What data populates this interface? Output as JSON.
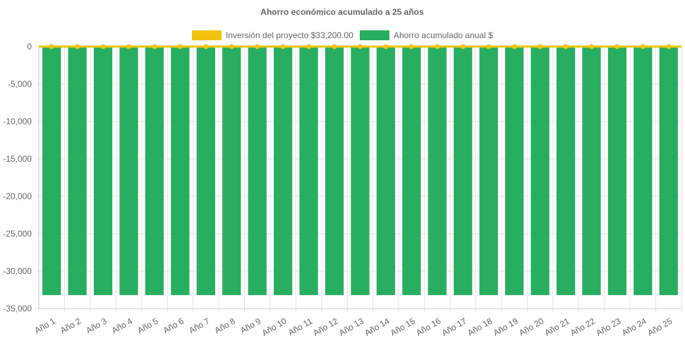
{
  "chart_data": {
    "type": "bar",
    "title": "Ahorro económico acumulado a 25 años",
    "legend_position": "top",
    "grid": true,
    "ylim": [
      -35000,
      0
    ],
    "yticks": [
      0,
      -5000,
      -10000,
      -15000,
      -20000,
      -25000,
      -30000,
      -35000
    ],
    "ytick_labels": [
      "0",
      "-5,000",
      "-10,000",
      "-15,000",
      "-20,000",
      "-25,000",
      "-30,000",
      "-35,000"
    ],
    "categories": [
      "Año 1",
      "Año 2",
      "Año 3",
      "Año 4",
      "Año 5",
      "Año 6",
      "Año 7",
      "Año 8",
      "Año 9",
      "Año 10",
      "Año 11",
      "Año 12",
      "Año 13",
      "Año 14",
      "Año 15",
      "Año 16",
      "Año 17",
      "Año 18",
      "Año 19",
      "Año 20",
      "Año 21",
      "Año 22",
      "Año 23",
      "Año 24",
      "Año 25"
    ],
    "series": [
      {
        "name": "Inversión del proyecto $33,200.00",
        "type": "line",
        "color": "#f1c40f",
        "values": [
          0,
          0,
          0,
          0,
          0,
          0,
          0,
          0,
          0,
          0,
          0,
          0,
          0,
          0,
          0,
          0,
          0,
          0,
          0,
          0,
          0,
          0,
          0,
          0,
          0
        ]
      },
      {
        "name": "Ahorro acumulado anual $",
        "type": "bar",
        "color": "#27ae60",
        "values": [
          -33200,
          -33200,
          -33200,
          -33200,
          -33200,
          -33200,
          -33200,
          -33200,
          -33200,
          -33200,
          -33200,
          -33200,
          -33200,
          -33200,
          -33200,
          -33200,
          -33200,
          -33200,
          -33200,
          -33200,
          -33200,
          -33200,
          -33200,
          -33200,
          -33200
        ]
      }
    ]
  }
}
